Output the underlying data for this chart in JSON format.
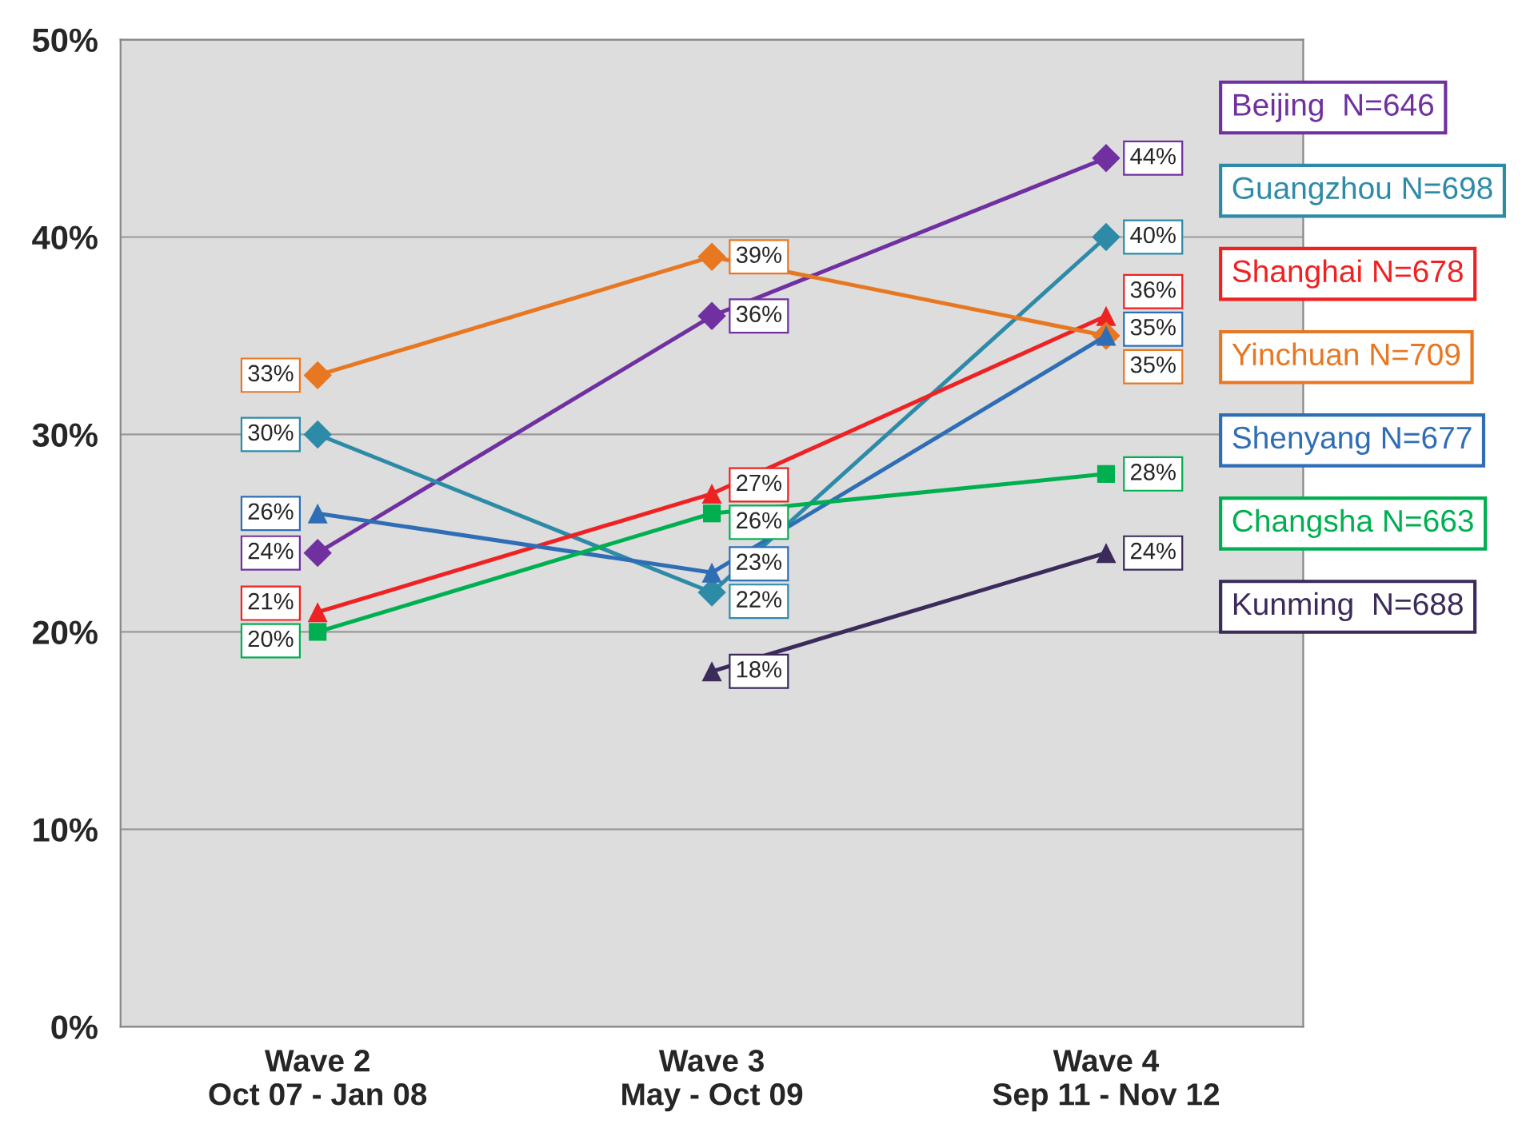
{
  "chart_data": {
    "type": "line",
    "categories": [
      "Wave 2\nOct 07 - Jan 08",
      "Wave 3\nMay - Oct 09",
      "Wave 4\nSep 11 - Nov 12"
    ],
    "series": [
      {
        "name": "Beijing  N=646",
        "color": "#7030a0",
        "marker": "diamond",
        "values": [
          24,
          36,
          44
        ],
        "value_labels": [
          "24%",
          "36%",
          "44%"
        ]
      },
      {
        "name": "Guangzhou N=698",
        "color": "#2e8ba8",
        "marker": "diamond",
        "values": [
          30,
          22,
          40
        ],
        "value_labels": [
          "30%",
          "22%",
          "40%"
        ]
      },
      {
        "name": "Shanghai N=678",
        "color": "#ee2222",
        "marker": "triangle",
        "values": [
          21,
          27,
          36
        ],
        "value_labels": [
          "21%",
          "27%",
          "36%"
        ]
      },
      {
        "name": "Yinchuan N=709",
        "color": "#e87722",
        "marker": "diamond",
        "values": [
          33,
          39,
          35
        ],
        "value_labels": [
          "33%",
          "39%",
          "35%"
        ]
      },
      {
        "name": "Shenyang N=677",
        "color": "#2f6eb5",
        "marker": "triangle",
        "values": [
          26,
          23,
          35
        ],
        "value_labels": [
          "26%",
          "23%",
          "35%"
        ]
      },
      {
        "name": "Changsha N=663",
        "color": "#00b050",
        "marker": "square",
        "values": [
          20,
          26,
          28
        ],
        "value_labels": [
          "20%",
          "26%",
          "28%"
        ]
      },
      {
        "name": "Kunming  N=688",
        "color": "#3b2a5a",
        "marker": "triangle",
        "values": [
          null,
          18,
          24
        ],
        "value_labels": [
          null,
          "18%",
          "24%"
        ]
      }
    ],
    "ylim": [
      0,
      50
    ],
    "yticks": [
      {
        "value": 0,
        "label": "0%"
      },
      {
        "value": 10,
        "label": "10%"
      },
      {
        "value": 20,
        "label": "20%"
      },
      {
        "value": 30,
        "label": "30%"
      },
      {
        "value": 40,
        "label": "40%"
      },
      {
        "value": 50,
        "label": "50%"
      }
    ],
    "grid": "y",
    "legend": "right",
    "line_style": "solid"
  }
}
